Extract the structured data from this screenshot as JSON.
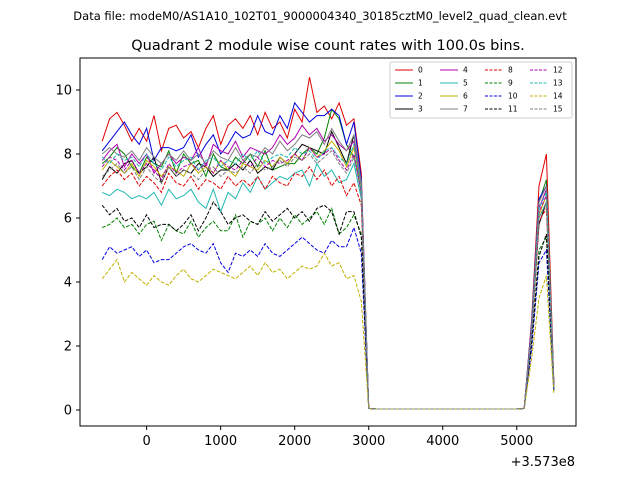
{
  "header": {
    "data_file": "Data file: modeM0/AS1A10_102T01_9000004340_30185cztM0_level2_quad_clean.evt"
  },
  "chart_data": {
    "type": "line",
    "title": "Quadrant 2 module wise count rates with 100.0s bins.",
    "xlabel": "",
    "ylabel": "",
    "offset_label": "+3.573e8",
    "xlim": [
      -900,
      5800
    ],
    "ylim": [
      -0.5,
      11
    ],
    "x_ticks": [
      0,
      1000,
      2000,
      3000,
      4000,
      5000
    ],
    "x_tick_labels": [
      "0",
      "1000",
      "2000",
      "3000",
      "4000",
      "5000"
    ],
    "y_ticks": [
      0,
      2,
      4,
      6,
      8,
      10
    ],
    "y_tick_labels": [
      "0",
      "2",
      "4",
      "6",
      "8",
      "10"
    ],
    "grid": false,
    "legend_placement": "top-right",
    "x": [
      -600,
      -500,
      -400,
      -300,
      -200,
      -100,
      0,
      100,
      200,
      300,
      400,
      500,
      600,
      700,
      800,
      900,
      1000,
      1100,
      1200,
      1300,
      1400,
      1500,
      1600,
      1700,
      1800,
      1900,
      2000,
      2100,
      2200,
      2300,
      2400,
      2500,
      2600,
      2700,
      2800,
      2900,
      3000,
      3100,
      3200,
      3300,
      3400,
      3500,
      3600,
      3700,
      3800,
      3900,
      4000,
      4100,
      4200,
      4300,
      4400,
      4500,
      4600,
      4700,
      4800,
      4900,
      5000,
      5100,
      5200,
      5300,
      5400,
      5500
    ],
    "series": [
      {
        "name": "0",
        "color": "#e00000",
        "dash": "solid",
        "values": [
          8.4,
          9.1,
          9.3,
          8.9,
          8.4,
          8.8,
          8.4,
          9.2,
          8.1,
          8.8,
          8.9,
          8.5,
          8.7,
          8.2,
          8.8,
          9.2,
          8.3,
          8.9,
          9.1,
          8.8,
          9.2,
          8.6,
          9.3,
          8.8,
          9.0,
          8.5,
          9.4,
          9.0,
          10.4,
          9.3,
          9.5,
          9.1,
          9.6,
          8.9,
          9.1,
          7.4,
          0.05,
          0.03,
          0.03,
          0.03,
          0.03,
          0.03,
          0.03,
          0.03,
          0.03,
          0.03,
          0.03,
          0.03,
          0.03,
          0.03,
          0.03,
          0.03,
          0.03,
          0.03,
          0.03,
          0.03,
          0.03,
          0.05,
          2.8,
          7.0,
          8.0,
          0.9
        ]
      },
      {
        "name": "1",
        "color": "#008000",
        "dash": "solid",
        "values": [
          7.7,
          7.9,
          8.2,
          8.0,
          7.6,
          7.4,
          7.9,
          7.7,
          7.6,
          8.1,
          7.4,
          8.0,
          7.7,
          7.8,
          7.3,
          8.0,
          7.6,
          7.5,
          7.9,
          7.7,
          8.0,
          7.6,
          8.1,
          7.5,
          7.6,
          7.7,
          7.7,
          8.0,
          8.2,
          8.0,
          8.5,
          9.4,
          9.1,
          8.3,
          7.9,
          7.0,
          0.05,
          0.03,
          0.03,
          0.03,
          0.03,
          0.03,
          0.03,
          0.03,
          0.03,
          0.03,
          0.03,
          0.03,
          0.03,
          0.03,
          0.03,
          0.03,
          0.03,
          0.03,
          0.03,
          0.03,
          0.03,
          0.05,
          2.6,
          6.5,
          7.2,
          0.8
        ]
      },
      {
        "name": "2",
        "color": "#0000e0",
        "dash": "solid",
        "values": [
          8.1,
          8.4,
          8.7,
          9.0,
          8.6,
          8.3,
          8.8,
          7.8,
          8.2,
          8.2,
          8.1,
          8.2,
          8.6,
          7.9,
          8.3,
          8.6,
          8.0,
          8.3,
          8.7,
          8.5,
          8.6,
          9.2,
          8.7,
          8.6,
          9.2,
          8.8,
          9.6,
          9.3,
          9.0,
          9.2,
          9.2,
          9.4,
          9.2,
          8.3,
          9.0,
          7.2,
          0.05,
          0.03,
          0.03,
          0.03,
          0.03,
          0.03,
          0.03,
          0.03,
          0.03,
          0.03,
          0.03,
          0.03,
          0.03,
          0.03,
          0.03,
          0.03,
          0.03,
          0.03,
          0.03,
          0.03,
          0.03,
          0.05,
          2.7,
          6.6,
          7.0,
          0.8
        ]
      },
      {
        "name": "3",
        "color": "#000000",
        "dash": "solid",
        "values": [
          7.2,
          7.6,
          7.4,
          7.7,
          7.8,
          7.4,
          7.6,
          7.9,
          7.1,
          7.6,
          7.3,
          7.5,
          7.4,
          7.7,
          7.6,
          7.3,
          7.5,
          7.5,
          7.7,
          7.5,
          7.8,
          7.4,
          7.6,
          7.5,
          7.9,
          7.7,
          8.0,
          8.3,
          8.2,
          8.1,
          8.0,
          8.7,
          8.2,
          7.7,
          8.6,
          6.8,
          0.05,
          0.03,
          0.03,
          0.03,
          0.03,
          0.03,
          0.03,
          0.03,
          0.03,
          0.03,
          0.03,
          0.03,
          0.03,
          0.03,
          0.03,
          0.03,
          0.03,
          0.03,
          0.03,
          0.03,
          0.03,
          0.05,
          2.5,
          5.8,
          6.5,
          0.7
        ]
      },
      {
        "name": "4",
        "color": "#b000b0",
        "dash": "solid",
        "values": [
          7.8,
          8.1,
          8.3,
          7.6,
          8.0,
          7.7,
          8.0,
          7.4,
          7.7,
          8.0,
          7.7,
          7.9,
          7.8,
          8.2,
          7.6,
          8.3,
          8.1,
          8.0,
          8.4,
          7.9,
          8.2,
          8.1,
          8.0,
          8.2,
          8.6,
          8.3,
          8.5,
          8.9,
          8.6,
          8.8,
          8.4,
          8.6,
          8.3,
          8.1,
          8.4,
          7.0,
          0.05,
          0.03,
          0.03,
          0.03,
          0.03,
          0.03,
          0.03,
          0.03,
          0.03,
          0.03,
          0.03,
          0.03,
          0.03,
          0.03,
          0.03,
          0.03,
          0.03,
          0.03,
          0.03,
          0.03,
          0.03,
          0.05,
          2.6,
          6.3,
          6.9,
          0.8
        ]
      },
      {
        "name": "5",
        "color": "#20b8b0",
        "dash": "solid",
        "values": [
          6.8,
          6.7,
          6.9,
          6.8,
          6.6,
          6.7,
          6.6,
          6.8,
          6.4,
          6.9,
          6.6,
          6.7,
          6.9,
          6.5,
          6.3,
          6.9,
          6.2,
          6.8,
          6.6,
          7.1,
          6.8,
          7.3,
          6.9,
          7.1,
          7.3,
          7.2,
          7.4,
          7.5,
          7.0,
          7.7,
          7.3,
          7.5,
          7.1,
          7.2,
          7.7,
          6.6,
          0.05,
          0.03,
          0.03,
          0.03,
          0.03,
          0.03,
          0.03,
          0.03,
          0.03,
          0.03,
          0.03,
          0.03,
          0.03,
          0.03,
          0.03,
          0.03,
          0.03,
          0.03,
          0.03,
          0.03,
          0.03,
          0.05,
          2.4,
          6.0,
          6.5,
          0.6
        ]
      },
      {
        "name": "6",
        "color": "#c0b000",
        "dash": "solid",
        "values": [
          7.5,
          7.8,
          7.6,
          7.4,
          7.7,
          7.3,
          7.8,
          7.6,
          7.3,
          7.6,
          7.5,
          7.3,
          7.7,
          7.4,
          7.6,
          7.4,
          7.8,
          7.5,
          7.3,
          7.7,
          7.6,
          7.5,
          7.8,
          7.6,
          7.9,
          7.7,
          8.0,
          7.8,
          8.2,
          7.9,
          8.1,
          8.4,
          8.1,
          7.6,
          8.2,
          6.9,
          0.05,
          0.03,
          0.03,
          0.03,
          0.03,
          0.03,
          0.03,
          0.03,
          0.03,
          0.03,
          0.03,
          0.03,
          0.03,
          0.03,
          0.03,
          0.03,
          0.03,
          0.03,
          0.03,
          0.03,
          0.03,
          0.05,
          2.5,
          6.1,
          6.7,
          0.7
        ]
      },
      {
        "name": "7",
        "color": "#808080",
        "dash": "solid",
        "values": [
          8.0,
          8.2,
          8.0,
          7.9,
          8.1,
          7.8,
          8.2,
          7.9,
          7.7,
          8.0,
          7.8,
          8.1,
          7.8,
          8.0,
          7.7,
          8.1,
          7.9,
          7.8,
          8.2,
          7.8,
          8.0,
          7.9,
          8.2,
          8.0,
          8.4,
          8.1,
          8.3,
          8.6,
          8.5,
          8.7,
          8.3,
          8.8,
          8.4,
          8.1,
          8.6,
          7.1,
          0.05,
          0.03,
          0.03,
          0.03,
          0.03,
          0.03,
          0.03,
          0.03,
          0.03,
          0.03,
          0.03,
          0.03,
          0.03,
          0.03,
          0.03,
          0.03,
          0.03,
          0.03,
          0.03,
          0.03,
          0.03,
          0.05,
          2.6,
          6.5,
          7.0,
          0.8
        ]
      },
      {
        "name": "8",
        "color": "#e00000",
        "dash": "dashed",
        "values": [
          7.0,
          7.3,
          7.5,
          7.2,
          7.4,
          7.0,
          7.3,
          7.1,
          6.8,
          7.4,
          7.1,
          7.0,
          7.3,
          6.9,
          7.2,
          7.1,
          6.9,
          7.3,
          7.0,
          7.2,
          7.0,
          7.3,
          6.9,
          7.3,
          7.1,
          7.0,
          7.4,
          7.3,
          7.6,
          7.2,
          7.5,
          7.0,
          7.3,
          6.7,
          7.1,
          6.4,
          0.05,
          0.03,
          0.03,
          0.03,
          0.03,
          0.03,
          0.03,
          0.03,
          0.03,
          0.03,
          0.03,
          0.03,
          0.03,
          0.03,
          0.03,
          0.03,
          0.03,
          0.03,
          0.03,
          0.03,
          0.03,
          0.05,
          2.4,
          5.9,
          6.3,
          0.7
        ]
      },
      {
        "name": "9",
        "color": "#008000",
        "dash": "dashed",
        "values": [
          5.7,
          5.8,
          6.0,
          5.7,
          5.8,
          5.5,
          5.8,
          5.9,
          5.3,
          5.8,
          5.6,
          5.5,
          5.9,
          5.4,
          5.7,
          5.9,
          5.6,
          5.6,
          6.1,
          5.4,
          5.9,
          5.8,
          6.0,
          5.6,
          6.0,
          5.7,
          6.1,
          5.8,
          6.0,
          6.2,
          5.8,
          6.3,
          5.5,
          5.7,
          6.1,
          5.5,
          0.05,
          0.03,
          0.03,
          0.03,
          0.03,
          0.03,
          0.03,
          0.03,
          0.03,
          0.03,
          0.03,
          0.03,
          0.03,
          0.03,
          0.03,
          0.03,
          0.03,
          0.03,
          0.03,
          0.03,
          0.03,
          0.05,
          2.1,
          5.0,
          5.4,
          0.6
        ]
      },
      {
        "name": "10",
        "color": "#0000e0",
        "dash": "dashed",
        "values": [
          4.7,
          5.1,
          4.9,
          5.0,
          5.1,
          4.8,
          5.0,
          4.6,
          4.7,
          4.7,
          4.9,
          5.1,
          5.2,
          5.0,
          4.9,
          5.2,
          4.6,
          4.3,
          4.9,
          4.8,
          5.0,
          4.8,
          5.2,
          4.9,
          4.8,
          5.0,
          5.2,
          5.4,
          5.2,
          5.0,
          4.9,
          5.3,
          5.1,
          5.1,
          5.7,
          4.9,
          0.05,
          0.03,
          0.03,
          0.03,
          0.03,
          0.03,
          0.03,
          0.03,
          0.03,
          0.03,
          0.03,
          0.03,
          0.03,
          0.03,
          0.03,
          0.03,
          0.03,
          0.03,
          0.03,
          0.03,
          0.03,
          0.05,
          1.9,
          4.6,
          5.0,
          0.6
        ]
      },
      {
        "name": "11",
        "color": "#000000",
        "dash": "dashed",
        "values": [
          6.4,
          6.1,
          6.3,
          5.9,
          6.0,
          5.7,
          6.1,
          5.7,
          5.8,
          5.8,
          5.6,
          5.8,
          6.1,
          5.6,
          6.0,
          6.5,
          6.2,
          5.8,
          6.0,
          6.1,
          5.9,
          5.8,
          6.2,
          5.9,
          6.1,
          6.3,
          6.0,
          6.2,
          5.9,
          6.3,
          6.4,
          6.2,
          5.5,
          6.2,
          6.2,
          5.4,
          0.05,
          0.03,
          0.03,
          0.03,
          0.03,
          0.03,
          0.03,
          0.03,
          0.03,
          0.03,
          0.03,
          0.03,
          0.03,
          0.03,
          0.03,
          0.03,
          0.03,
          0.03,
          0.03,
          0.03,
          0.03,
          0.05,
          2.1,
          4.8,
          5.5,
          0.7
        ]
      },
      {
        "name": "12",
        "color": "#b000b0",
        "dash": "dashed",
        "values": [
          7.6,
          7.9,
          7.8,
          7.5,
          7.8,
          7.4,
          7.7,
          7.5,
          7.2,
          7.7,
          7.4,
          7.6,
          7.7,
          7.5,
          7.7,
          7.4,
          7.8,
          7.6,
          7.5,
          7.8,
          7.6,
          7.9,
          7.6,
          7.8,
          7.7,
          7.8,
          8.0,
          7.8,
          8.2,
          7.9,
          8.0,
          8.2,
          7.8,
          7.5,
          8.0,
          6.8,
          0.05,
          0.03,
          0.03,
          0.03,
          0.03,
          0.03,
          0.03,
          0.03,
          0.03,
          0.03,
          0.03,
          0.03,
          0.03,
          0.03,
          0.03,
          0.03,
          0.03,
          0.03,
          0.03,
          0.03,
          0.03,
          0.05,
          2.5,
          6.2,
          6.7,
          0.7
        ]
      },
      {
        "name": "13",
        "color": "#20b8b0",
        "dash": "dashed",
        "values": [
          7.9,
          7.7,
          8.0,
          7.8,
          7.9,
          7.6,
          8.0,
          7.7,
          7.5,
          7.9,
          7.6,
          7.8,
          7.9,
          7.5,
          7.8,
          7.9,
          7.6,
          7.8,
          7.7,
          8.0,
          7.8,
          8.1,
          7.7,
          7.9,
          8.0,
          7.9,
          8.2,
          8.0,
          8.1,
          7.8,
          8.1,
          8.2,
          7.9,
          7.7,
          8.3,
          6.9,
          0.05,
          0.03,
          0.03,
          0.03,
          0.03,
          0.03,
          0.03,
          0.03,
          0.03,
          0.03,
          0.03,
          0.03,
          0.03,
          0.03,
          0.03,
          0.03,
          0.03,
          0.03,
          0.03,
          0.03,
          0.03,
          0.05,
          2.5,
          6.3,
          6.8,
          0.7
        ]
      },
      {
        "name": "14",
        "color": "#c0b000",
        "dash": "dashed",
        "values": [
          4.1,
          4.4,
          4.7,
          4.0,
          4.3,
          4.1,
          3.9,
          4.2,
          4.0,
          3.9,
          4.2,
          4.4,
          4.1,
          4.0,
          4.2,
          4.4,
          4.3,
          4.2,
          4.1,
          4.3,
          4.5,
          4.2,
          4.6,
          4.3,
          4.4,
          4.1,
          4.3,
          4.5,
          4.4,
          4.5,
          4.9,
          4.5,
          4.6,
          4.1,
          4.2,
          3.4,
          0.05,
          0.03,
          0.03,
          0.03,
          0.03,
          0.03,
          0.03,
          0.03,
          0.03,
          0.03,
          0.03,
          0.03,
          0.03,
          0.03,
          0.03,
          0.03,
          0.03,
          0.03,
          0.03,
          0.03,
          0.03,
          0.05,
          1.6,
          3.5,
          4.2,
          0.5
        ]
      },
      {
        "name": "15",
        "color": "#808080",
        "dash": "dashed",
        "values": [
          7.3,
          7.5,
          7.7,
          7.4,
          7.6,
          7.2,
          7.6,
          7.3,
          7.1,
          7.6,
          7.3,
          7.5,
          7.4,
          7.2,
          7.5,
          7.6,
          7.3,
          7.5,
          7.4,
          7.6,
          7.4,
          7.7,
          7.5,
          7.6,
          7.8,
          7.6,
          7.9,
          7.8,
          8.0,
          7.7,
          7.9,
          8.1,
          7.7,
          7.4,
          7.9,
          6.7,
          0.05,
          0.03,
          0.03,
          0.03,
          0.03,
          0.03,
          0.03,
          0.03,
          0.03,
          0.03,
          0.03,
          0.03,
          0.03,
          0.03,
          0.03,
          0.03,
          0.03,
          0.03,
          0.03,
          0.03,
          0.03,
          0.05,
          2.4,
          6.0,
          6.5,
          0.7
        ]
      }
    ]
  }
}
